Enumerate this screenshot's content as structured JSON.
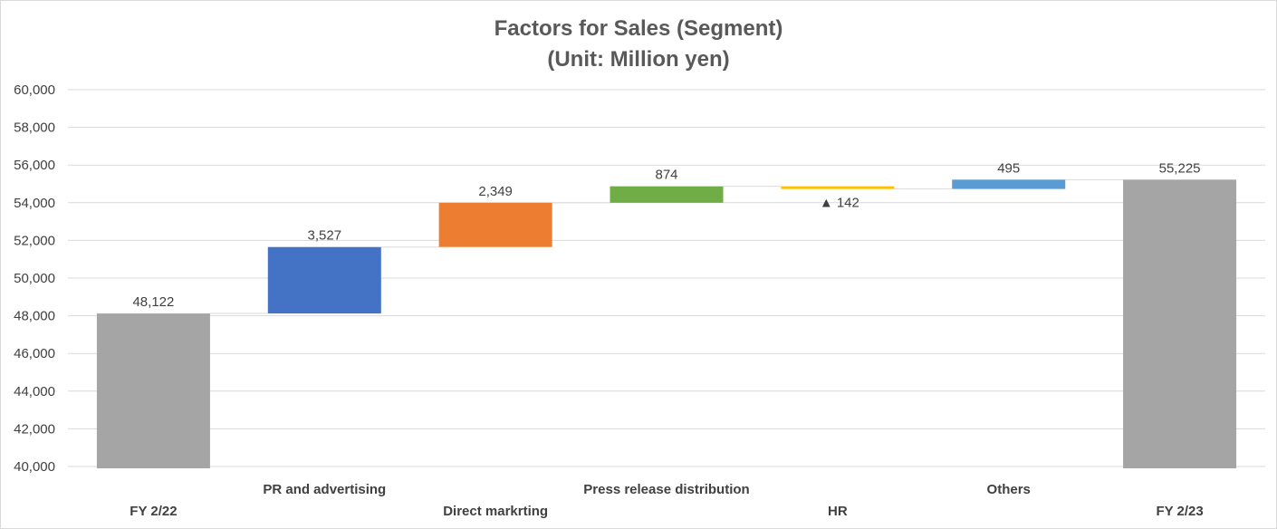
{
  "chart_data": {
    "type": "waterfall",
    "title": "Factors for Sales (Segment)",
    "subtitle": "(Unit: Million yen)",
    "ylim": [
      40000,
      60000
    ],
    "yticks": [
      "40,000",
      "42,000",
      "44,000",
      "46,000",
      "48,000",
      "50,000",
      "52,000",
      "54,000",
      "56,000",
      "58,000",
      "60,000"
    ],
    "ytick_values": [
      40000,
      42000,
      44000,
      46000,
      48000,
      50000,
      52000,
      54000,
      56000,
      58000,
      60000
    ],
    "grid": true,
    "categories": [
      "FY 2/22",
      "PR and advertising",
      "Direct markrting",
      "Press release distribution",
      "HR",
      "Others",
      "FY 2/23"
    ],
    "bars": [
      {
        "category": "FY 2/22",
        "kind": "total",
        "value": 48122,
        "label": "48,122",
        "color": "#a5a5a5"
      },
      {
        "category": "PR and advertising",
        "kind": "delta",
        "value": 3527,
        "label": "3,527",
        "color": "#4472c4"
      },
      {
        "category": "Direct markrting",
        "kind": "delta",
        "value": 2349,
        "label": "2,349",
        "color": "#ed7d31"
      },
      {
        "category": "Press release distribution",
        "kind": "delta",
        "value": 874,
        "label": "874",
        "color": "#70ad47"
      },
      {
        "category": "HR",
        "kind": "delta",
        "value": -142,
        "label": "▲ 142",
        "color": "#ffc000"
      },
      {
        "category": "Others",
        "kind": "delta",
        "value": 495,
        "label": "495",
        "color": "#5b9bd5"
      },
      {
        "category": "FY 2/23",
        "kind": "total",
        "value": 55225,
        "label": "55,225",
        "color": "#a5a5a5"
      }
    ]
  }
}
